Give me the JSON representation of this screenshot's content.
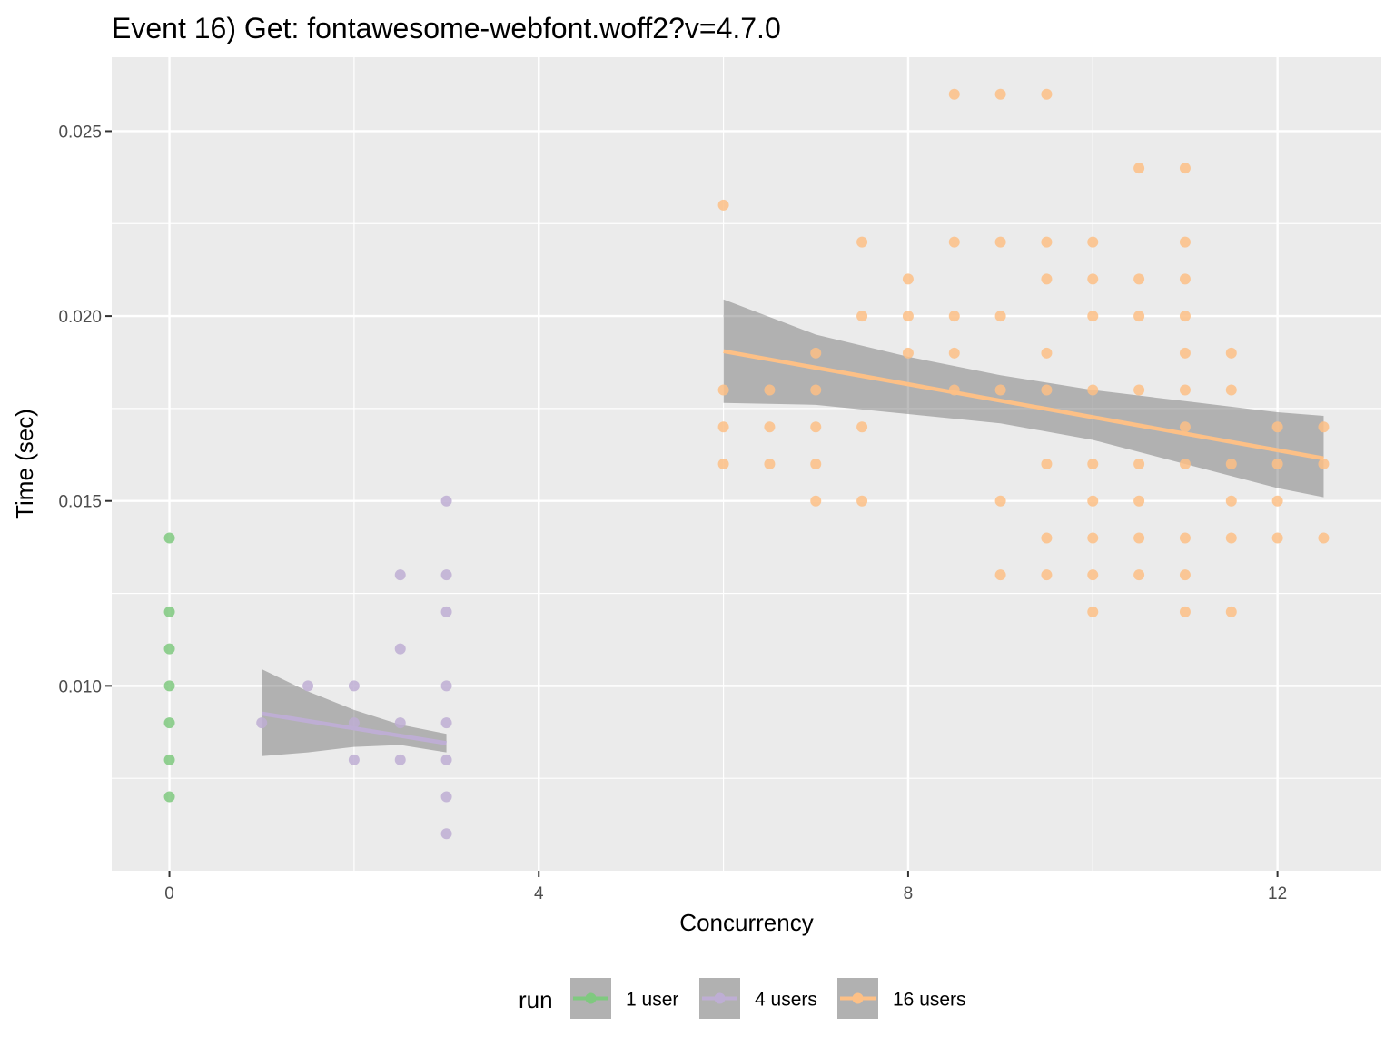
{
  "chart_data": {
    "type": "scatter",
    "title": "Event 16) Get: fontawesome-webfont.woff2?v=4.7.0",
    "xlabel": "Concurrency",
    "ylabel": "Time (sec)",
    "xlim": [
      -0.625,
      13.125
    ],
    "ylim": [
      0.005,
      0.027
    ],
    "x_ticks": [
      0,
      4,
      8,
      12
    ],
    "x_tick_labels": [
      "0",
      "4",
      "8",
      "12"
    ],
    "y_ticks": [
      0.01,
      0.015,
      0.02,
      0.025
    ],
    "y_tick_labels": [
      "0.010",
      "0.015",
      "0.020",
      "0.025"
    ],
    "grid": true,
    "legend": {
      "title": "run",
      "placement": "bottom"
    },
    "series": [
      {
        "name": "1 user",
        "color": "#7fc97f",
        "points": [
          [
            0,
            0.007
          ],
          [
            0,
            0.008
          ],
          [
            0,
            0.009
          ],
          [
            0,
            0.01
          ],
          [
            0,
            0.011
          ],
          [
            0,
            0.012
          ],
          [
            0,
            0.014
          ]
        ],
        "fit": null
      },
      {
        "name": "4 users",
        "color": "#beaed4",
        "points": [
          [
            1,
            0.009
          ],
          [
            1.5,
            0.01
          ],
          [
            2,
            0.008
          ],
          [
            2,
            0.009
          ],
          [
            2,
            0.01
          ],
          [
            2.5,
            0.008
          ],
          [
            2.5,
            0.009
          ],
          [
            2.5,
            0.011
          ],
          [
            2.5,
            0.013
          ],
          [
            3,
            0.006
          ],
          [
            3,
            0.007
          ],
          [
            3,
            0.008
          ],
          [
            3,
            0.009
          ],
          [
            3,
            0.01
          ],
          [
            3,
            0.012
          ],
          [
            3,
            0.013
          ],
          [
            3,
            0.015
          ]
        ],
        "fit": {
          "x": [
            1,
            3
          ],
          "y": [
            0.00925,
            0.00845
          ],
          "band_x": [
            1,
            1.5,
            2,
            2.5,
            3
          ],
          "band_upper": [
            0.01045,
            0.00985,
            0.00935,
            0.00895,
            0.0087
          ],
          "band_lower": [
            0.0081,
            0.0082,
            0.00835,
            0.0084,
            0.0082
          ]
        }
      },
      {
        "name": "16 users",
        "color": "#fdc086",
        "points": [
          [
            6,
            0.016
          ],
          [
            6,
            0.017
          ],
          [
            6,
            0.018
          ],
          [
            6,
            0.023
          ],
          [
            6.5,
            0.016
          ],
          [
            6.5,
            0.017
          ],
          [
            6.5,
            0.018
          ],
          [
            7,
            0.015
          ],
          [
            7,
            0.016
          ],
          [
            7,
            0.017
          ],
          [
            7,
            0.018
          ],
          [
            7,
            0.019
          ],
          [
            7.5,
            0.015
          ],
          [
            7.5,
            0.017
          ],
          [
            7.5,
            0.02
          ],
          [
            7.5,
            0.022
          ],
          [
            8,
            0.019
          ],
          [
            8,
            0.02
          ],
          [
            8,
            0.021
          ],
          [
            8.5,
            0.018
          ],
          [
            8.5,
            0.019
          ],
          [
            8.5,
            0.02
          ],
          [
            8.5,
            0.022
          ],
          [
            8.5,
            0.026
          ],
          [
            9,
            0.013
          ],
          [
            9,
            0.015
          ],
          [
            9,
            0.018
          ],
          [
            9,
            0.02
          ],
          [
            9,
            0.022
          ],
          [
            9,
            0.026
          ],
          [
            9.5,
            0.013
          ],
          [
            9.5,
            0.014
          ],
          [
            9.5,
            0.016
          ],
          [
            9.5,
            0.018
          ],
          [
            9.5,
            0.019
          ],
          [
            9.5,
            0.021
          ],
          [
            9.5,
            0.022
          ],
          [
            9.5,
            0.026
          ],
          [
            10,
            0.012
          ],
          [
            10,
            0.013
          ],
          [
            10,
            0.014
          ],
          [
            10,
            0.015
          ],
          [
            10,
            0.016
          ],
          [
            10,
            0.018
          ],
          [
            10,
            0.02
          ],
          [
            10,
            0.021
          ],
          [
            10,
            0.022
          ],
          [
            10.5,
            0.013
          ],
          [
            10.5,
            0.014
          ],
          [
            10.5,
            0.015
          ],
          [
            10.5,
            0.016
          ],
          [
            10.5,
            0.018
          ],
          [
            10.5,
            0.02
          ],
          [
            10.5,
            0.021
          ],
          [
            10.5,
            0.024
          ],
          [
            11,
            0.012
          ],
          [
            11,
            0.013
          ],
          [
            11,
            0.014
          ],
          [
            11,
            0.016
          ],
          [
            11,
            0.017
          ],
          [
            11,
            0.018
          ],
          [
            11,
            0.019
          ],
          [
            11,
            0.02
          ],
          [
            11,
            0.021
          ],
          [
            11,
            0.022
          ],
          [
            11,
            0.024
          ],
          [
            11.5,
            0.012
          ],
          [
            11.5,
            0.014
          ],
          [
            11.5,
            0.015
          ],
          [
            11.5,
            0.016
          ],
          [
            11.5,
            0.018
          ],
          [
            11.5,
            0.019
          ],
          [
            12,
            0.014
          ],
          [
            12,
            0.015
          ],
          [
            12,
            0.016
          ],
          [
            12,
            0.017
          ],
          [
            12.5,
            0.014
          ],
          [
            12.5,
            0.016
          ],
          [
            12.5,
            0.017
          ]
        ],
        "fit": {
          "x": [
            6,
            12.5
          ],
          "y": [
            0.01905,
            0.01615
          ],
          "band_x": [
            6,
            7,
            8,
            9,
            10,
            11,
            12,
            12.5
          ],
          "band_upper": [
            0.02045,
            0.0195,
            0.0189,
            0.0184,
            0.018,
            0.0177,
            0.0174,
            0.0173
          ],
          "band_lower": [
            0.01765,
            0.0176,
            0.01735,
            0.0171,
            0.01665,
            0.016,
            0.01535,
            0.0151
          ]
        }
      }
    ]
  }
}
